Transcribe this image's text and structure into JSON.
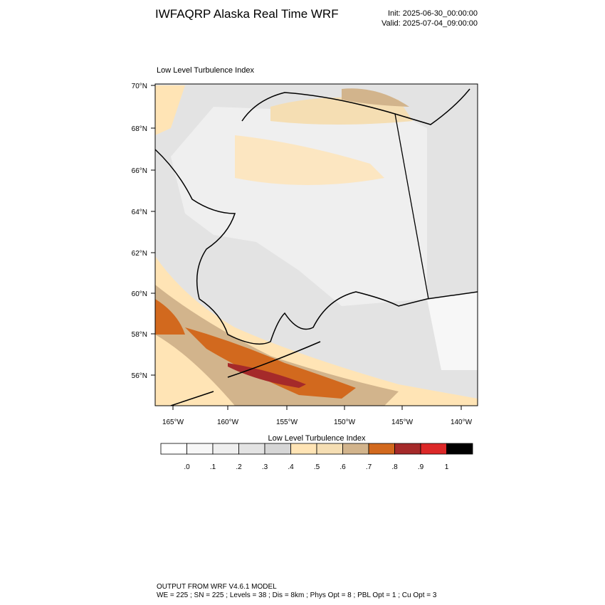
{
  "header": {
    "title": "IWFAQRP Alaska Real Time WRF",
    "init": "Init: 2025-06-30_00:00:00",
    "valid": "Valid: 2025-07-04_09:00:00"
  },
  "map": {
    "title": "Low Level Turbulence Index",
    "lat_labels": [
      "70°N",
      "68°N",
      "66°N",
      "64°N",
      "62°N",
      "60°N",
      "58°N",
      "56°N"
    ],
    "lon_labels": [
      "165°W",
      "160°W",
      "155°W",
      "150°W",
      "145°W",
      "140°W"
    ]
  },
  "colorbar": {
    "title": "Low Level Turbulence Index",
    "colors": [
      "#ffffff",
      "#f7f7f7",
      "#efefef",
      "#e3e3e3",
      "#d6d6d6",
      "#ffe4b5",
      "#f5deb3",
      "#d2b48c",
      "#d2691e",
      "#a52a2a",
      "#dc2828",
      "#000000"
    ],
    "labels": [
      ".0",
      ".1",
      ".2",
      ".3",
      ".4",
      ".5",
      ".6",
      ".7",
      ".8",
      ".9",
      "1"
    ]
  },
  "footer": {
    "line1": "OUTPUT FROM WRF V4.6.1 MODEL",
    "line2": "WE = 225 ; SN = 225 ; Levels = 38 ; Dis = 8km ; Phys Opt = 8 ; PBL Opt = 1 ; Cu Opt = 3"
  }
}
